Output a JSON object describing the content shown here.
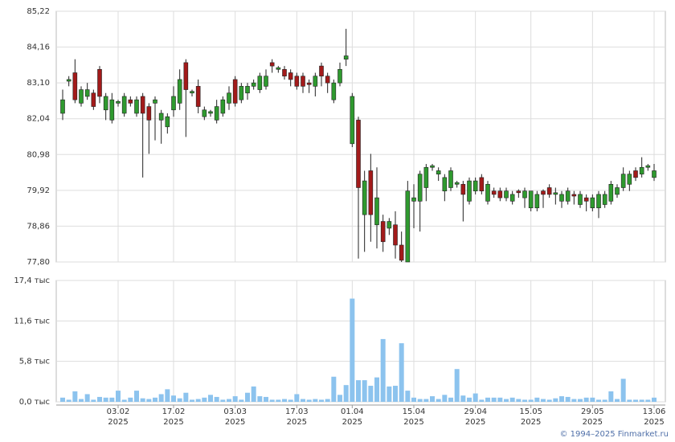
{
  "chart_data": [
    {
      "type": "candlestick",
      "up_color": "#2f9a2f",
      "down_color": "#a31a1a",
      "flat_color": "#222222",
      "ylim": [
        77.8,
        85.22
      ],
      "yticks": [
        {
          "value": 77.8,
          "label": "77,80"
        },
        {
          "value": 78.86,
          "label": "78,86"
        },
        {
          "value": 79.92,
          "label": "79,92"
        },
        {
          "value": 80.98,
          "label": "80,98"
        },
        {
          "value": 82.04,
          "label": "82,04"
        },
        {
          "value": 83.1,
          "label": "83,10"
        },
        {
          "value": 84.16,
          "label": "84,16"
        },
        {
          "value": 85.22,
          "label": "85,22"
        }
      ],
      "grid": true,
      "open": [
        82.2,
        83.15,
        83.4,
        82.5,
        82.7,
        82.8,
        83.5,
        82.3,
        82.0,
        82.5,
        82.2,
        82.6,
        82.2,
        82.7,
        82.4,
        82.5,
        82.0,
        81.8,
        82.3,
        82.5,
        83.7,
        82.8,
        83.0,
        82.1,
        82.2,
        82.0,
        82.2,
        82.5,
        83.2,
        82.6,
        82.8,
        83.0,
        82.9,
        83.0,
        83.7,
        83.5,
        83.5,
        83.4,
        83.3,
        83.3,
        83.1,
        83.0,
        83.6,
        83.3,
        82.6,
        83.1,
        83.8,
        81.3,
        82.0,
        79.2,
        80.5,
        78.9,
        79.0,
        78.8,
        78.9,
        78.3,
        77.8,
        79.6,
        79.6,
        80.0,
        80.6,
        80.4,
        79.9,
        80.0,
        80.1,
        80.1,
        79.6,
        79.9,
        80.3,
        79.6,
        79.9,
        79.9,
        79.7,
        79.6,
        79.9,
        79.7,
        79.4,
        79.4,
        79.9,
        80.0,
        79.8,
        79.6,
        79.6,
        79.8,
        79.5,
        79.7,
        79.4,
        79.4,
        79.5,
        79.6,
        79.8,
        80.0,
        80.1,
        80.5,
        80.4,
        80.6,
        80.3
      ],
      "high": [
        82.9,
        83.3,
        83.8,
        83.0,
        83.1,
        82.9,
        83.6,
        82.8,
        82.8,
        82.6,
        82.8,
        82.7,
        82.7,
        82.8,
        82.5,
        82.7,
        82.3,
        82.2,
        83.0,
        83.5,
        83.8,
        82.9,
        83.2,
        82.4,
        82.3,
        82.6,
        82.7,
        83.0,
        83.3,
        83.1,
        83.1,
        83.2,
        83.4,
        83.5,
        83.8,
        83.6,
        83.6,
        83.5,
        83.4,
        83.4,
        83.2,
        83.4,
        83.7,
        83.4,
        83.2,
        83.7,
        84.7,
        82.8,
        82.1,
        80.5,
        81.0,
        80.6,
        79.2,
        79.1,
        79.3,
        78.7,
        80.2,
        80.1,
        80.5,
        80.7,
        80.7,
        80.6,
        80.4,
        80.6,
        80.2,
        80.2,
        80.3,
        80.3,
        80.4,
        80.2,
        80.0,
        80.0,
        80.0,
        79.9,
        79.95,
        80.0,
        79.9,
        79.9,
        79.95,
        80.1,
        80.0,
        79.9,
        80.0,
        79.9,
        79.9,
        79.8,
        79.8,
        79.9,
        79.9,
        80.2,
        80.1,
        80.6,
        80.5,
        80.6,
        80.9,
        80.7,
        80.7
      ],
      "low": [
        82.0,
        83.0,
        82.5,
        82.4,
        82.6,
        82.3,
        82.5,
        82.0,
        81.9,
        82.4,
        82.1,
        82.4,
        82.1,
        80.3,
        81.0,
        81.4,
        81.3,
        81.6,
        82.1,
        82.3,
        81.5,
        82.7,
        82.2,
        82.0,
        82.1,
        81.9,
        82.1,
        82.3,
        82.4,
        82.5,
        82.6,
        82.9,
        82.8,
        82.9,
        83.4,
        83.4,
        83.2,
        83.0,
        82.9,
        82.8,
        82.8,
        82.7,
        83.0,
        82.8,
        82.5,
        83.0,
        83.6,
        81.2,
        77.9,
        78.1,
        78.4,
        78.2,
        78.1,
        78.6,
        77.9,
        77.8,
        77.8,
        78.8,
        78.7,
        79.6,
        80.5,
        80.2,
        79.6,
        79.9,
        80.0,
        79.0,
        79.5,
        79.8,
        79.8,
        79.5,
        79.7,
        79.6,
        79.6,
        79.5,
        79.7,
        79.4,
        79.3,
        79.3,
        79.4,
        79.7,
        79.5,
        79.4,
        79.5,
        79.5,
        79.4,
        79.3,
        79.3,
        79.1,
        79.4,
        79.5,
        79.7,
        79.9,
        79.9,
        80.2,
        80.3,
        80.5,
        80.2
      ],
      "close": [
        82.6,
        83.2,
        82.6,
        82.9,
        82.9,
        82.4,
        82.7,
        82.7,
        82.6,
        82.55,
        82.7,
        82.5,
        82.6,
        82.2,
        82.0,
        82.6,
        82.2,
        82.1,
        82.7,
        83.2,
        82.9,
        82.85,
        82.4,
        82.3,
        82.25,
        82.4,
        82.6,
        82.8,
        82.5,
        83.0,
        83.0,
        83.1,
        83.3,
        83.3,
        83.6,
        83.55,
        83.3,
        83.2,
        83.0,
        83.0,
        83.05,
        83.3,
        83.3,
        83.1,
        83.1,
        83.5,
        83.9,
        82.7,
        80.0,
        80.2,
        79.2,
        79.7,
        78.4,
        79.0,
        78.3,
        77.85,
        79.9,
        79.7,
        80.4,
        80.6,
        80.65,
        80.5,
        80.3,
        80.5,
        80.15,
        79.8,
        80.2,
        80.2,
        79.9,
        80.1,
        79.8,
        79.7,
        79.9,
        79.8,
        79.85,
        79.9,
        79.9,
        79.8,
        79.8,
        79.8,
        79.85,
        79.8,
        79.9,
        79.75,
        79.8,
        79.6,
        79.7,
        79.8,
        79.8,
        80.1,
        80.0,
        80.4,
        80.4,
        80.3,
        80.6,
        80.65,
        80.5
      ]
    },
    {
      "type": "bar",
      "color": "#8cc3ee",
      "ylim": [
        0,
        17.4
      ],
      "yticks": [
        {
          "value": 0,
          "label": "0,0 тыс"
        },
        {
          "value": 5.8,
          "label": "5,8 тыс"
        },
        {
          "value": 11.6,
          "label": "11,6 тыс"
        },
        {
          "value": 17.4,
          "label": "17,4 тыс"
        }
      ],
      "grid": true,
      "values": [
        0.6,
        0.3,
        1.5,
        0.4,
        1.1,
        0.3,
        0.7,
        0.6,
        0.6,
        1.6,
        0.3,
        0.6,
        1.6,
        0.5,
        0.4,
        0.6,
        1.1,
        1.8,
        0.9,
        0.5,
        1.3,
        0.3,
        0.4,
        0.6,
        1.0,
        0.7,
        0.3,
        0.4,
        0.8,
        0.3,
        1.3,
        2.2,
        0.8,
        0.7,
        0.3,
        0.3,
        0.4,
        0.3,
        1.1,
        0.4,
        0.3,
        0.4,
        0.3,
        0.4,
        3.6,
        1.0,
        2.4,
        14.8,
        3.1,
        3.1,
        2.3,
        3.5,
        9.0,
        2.2,
        2.3,
        8.4,
        1.6,
        0.6,
        0.4,
        0.4,
        0.8,
        0.4,
        1.0,
        0.6,
        4.7,
        0.9,
        0.6,
        1.2,
        0.3,
        0.6,
        0.6,
        0.6,
        0.4,
        0.6,
        0.4,
        0.3,
        0.3,
        0.6,
        0.4,
        0.3,
        0.5,
        0.8,
        0.7,
        0.4,
        0.4,
        0.6,
        0.6,
        0.3,
        0.3,
        1.5,
        0.4,
        3.3,
        0.3,
        0.3,
        0.3,
        0.3,
        0.6
      ],
      "categories": [
        null,
        null,
        null,
        null,
        null,
        null,
        null,
        null,
        null,
        "03.02\n2025",
        null,
        null,
        null,
        null,
        null,
        null,
        null,
        null,
        "17.02\n2025",
        null,
        null,
        null,
        null,
        null,
        null,
        null,
        null,
        null,
        "03.03\n2025",
        null,
        null,
        null,
        null,
        null,
        null,
        null,
        null,
        null,
        "17.03\n2025",
        null,
        null,
        null,
        null,
        null,
        null,
        null,
        null,
        "01.04\n2025",
        null,
        null,
        null,
        null,
        null,
        null,
        null,
        null,
        null,
        "15.04\n2025",
        null,
        null,
        null,
        null,
        null,
        null,
        null,
        null,
        null,
        "29.04\n2025",
        null,
        null,
        null,
        null,
        null,
        null,
        null,
        null,
        "15.05\n2025",
        null,
        null,
        null,
        null,
        null,
        null,
        null,
        null,
        null,
        "29.05\n2025",
        null,
        null,
        null,
        null,
        null,
        null,
        null,
        null,
        null,
        "13.06\n2025"
      ]
    }
  ],
  "footer": "© 1994–2025 Finmarket.ru"
}
